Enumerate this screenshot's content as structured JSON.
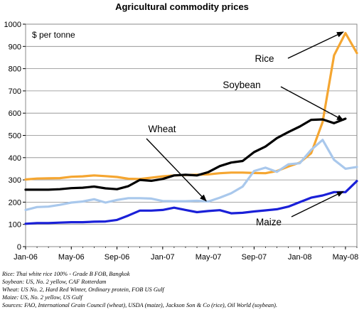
{
  "chart_data": {
    "type": "line",
    "title": "Agricultural commodity prices",
    "unit_label": "$ per tonne",
    "ylim": [
      0,
      1000
    ],
    "y_ticks": [
      0,
      100,
      200,
      300,
      400,
      500,
      600,
      700,
      800,
      900,
      1000
    ],
    "x_ticks": [
      "Jan-06",
      "May-06",
      "Sep-06",
      "Jan-07",
      "May-07",
      "Sep-07",
      "Jan-08",
      "May-08"
    ],
    "x": [
      "Jan-06",
      "Feb-06",
      "Mar-06",
      "Apr-06",
      "May-06",
      "Jun-06",
      "Jul-06",
      "Aug-06",
      "Sep-06",
      "Oct-06",
      "Nov-06",
      "Dec-06",
      "Jan-07",
      "Feb-07",
      "Mar-07",
      "Apr-07",
      "May-07",
      "Jun-07",
      "Jul-07",
      "Aug-07",
      "Sep-07",
      "Oct-07",
      "Nov-07",
      "Dec-07",
      "Jan-08",
      "Feb-08",
      "Mar-08",
      "Apr-08",
      "May-08",
      "Jun-08"
    ],
    "grid": "horizontal",
    "series": [
      {
        "name": "Rice",
        "color": "#f5a631",
        "values": [
          302,
          306,
          307,
          308,
          314,
          316,
          320,
          317,
          313,
          305,
          304,
          310,
          316,
          320,
          322,
          323,
          325,
          330,
          333,
          333,
          331,
          330,
          340,
          360,
          378,
          420,
          560,
          860,
          960,
          870
        ]
      },
      {
        "name": "Soybean",
        "color": "#000000",
        "values": [
          256,
          256,
          256,
          258,
          263,
          265,
          270,
          262,
          258,
          272,
          300,
          296,
          304,
          320,
          323,
          320,
          335,
          362,
          378,
          385,
          425,
          450,
          488,
          515,
          540,
          570,
          572,
          555,
          575,
          null
        ]
      },
      {
        "name": "Wheat",
        "color": "#a9c8ec",
        "values": [
          165,
          178,
          180,
          188,
          198,
          203,
          213,
          198,
          210,
          218,
          218,
          216,
          205,
          204,
          204,
          206,
          203,
          220,
          240,
          270,
          340,
          355,
          336,
          370,
          375,
          435,
          480,
          390,
          350,
          358
        ]
      },
      {
        "name": "Maize",
        "color": "#1a20d8",
        "values": [
          103,
          106,
          106,
          108,
          110,
          110,
          112,
          113,
          120,
          140,
          162,
          162,
          165,
          175,
          165,
          155,
          160,
          164,
          150,
          152,
          158,
          163,
          168,
          180,
          200,
          220,
          230,
          245,
          245,
          295
        ]
      }
    ],
    "annotations": [
      "Rice",
      "Soybean",
      "Wheat",
      "Maize"
    ]
  },
  "notes": [
    "Rice: Thai white rice 100% - Grade B FOB, Bangkok",
    "Soybean: US, No. 2 yellow, CAF Rotterdam",
    "Wheat: US No. 2, Hard Red Winter, Ordinary protein, FOB US Gulf",
    "Maize: US, No. 2 yellow, US Gulf",
    "Sources: FAO, International Grain Council (wheat), USDA (maize), Jackson Son & Co (rice), Oil World (soybean)."
  ]
}
